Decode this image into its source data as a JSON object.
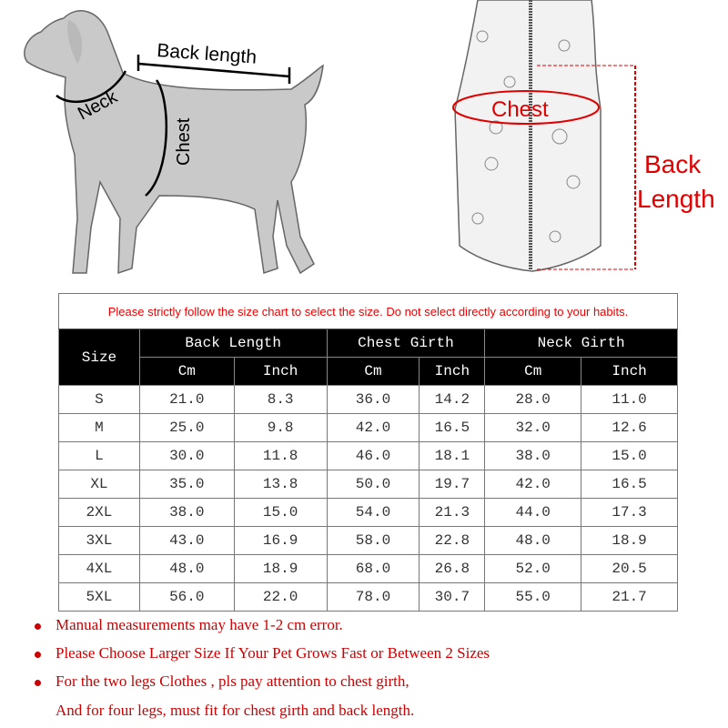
{
  "diagram": {
    "dog_labels": {
      "back_length": "Back length",
      "neck": "Neck",
      "chest": "Chest"
    },
    "vest_labels": {
      "chest": "Chest",
      "back_length_line1": "Back",
      "back_length_line2": "Length"
    },
    "accent_color": "#e00000"
  },
  "table": {
    "warning": "Please strictly follow the size chart to select the size. Do not select directly according to your habits.",
    "size_header": "Size",
    "groups": [
      "Back Length",
      "Chest Girth",
      "Neck Girth"
    ],
    "units": [
      "Cm",
      "Inch",
      "Cm",
      "Inch",
      "Cm",
      "Inch"
    ],
    "rows": [
      [
        "S",
        "21.0",
        "8.3",
        "36.0",
        "14.2",
        "28.0",
        "11.0"
      ],
      [
        "M",
        "25.0",
        "9.8",
        "42.0",
        "16.5",
        "32.0",
        "12.6"
      ],
      [
        "L",
        "30.0",
        "11.8",
        "46.0",
        "18.1",
        "38.0",
        "15.0"
      ],
      [
        "XL",
        "35.0",
        "13.8",
        "50.0",
        "19.7",
        "42.0",
        "16.5"
      ],
      [
        "2XL",
        "38.0",
        "15.0",
        "54.0",
        "21.3",
        "44.0",
        "17.3"
      ],
      [
        "3XL",
        "43.0",
        "16.9",
        "58.0",
        "22.8",
        "48.0",
        "18.9"
      ],
      [
        "4XL",
        "48.0",
        "18.9",
        "68.0",
        "26.8",
        "52.0",
        "20.5"
      ],
      [
        "5XL",
        "56.0",
        "22.0",
        "78.0",
        "30.7",
        "55.0",
        "21.7"
      ]
    ]
  },
  "notes": [
    "Manual measurements may have 1-2 cm error.",
    "Please Choose Larger Size If Your Pet Grows Fast or Between 2 Sizes",
    "For the two legs Clothes , pls pay attention to chest girth,",
    "And for four legs, must fit for chest girth and back length."
  ]
}
